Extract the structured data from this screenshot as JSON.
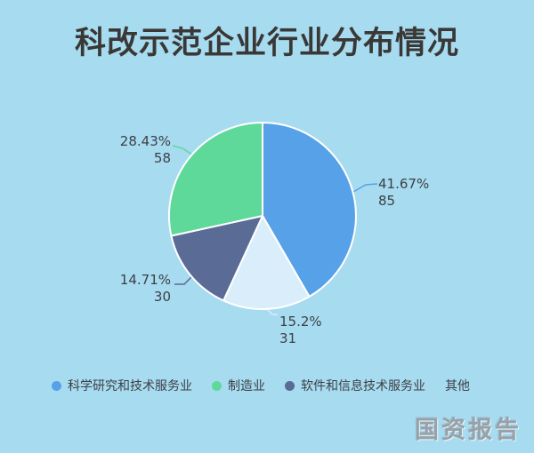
{
  "page": {
    "watermark": "国资报告"
  },
  "colors": {
    "background": "#a7dbf0",
    "title": "#3a3836",
    "label": "#3d4045",
    "slice_border": "#ffffff",
    "watermark": "#99a1a8"
  },
  "chart_data": {
    "type": "pie",
    "title": "科改示范企业行业分布情况",
    "direction": "clockwise",
    "start_angle_deg": 0,
    "legend_position": "bottom",
    "slices": [
      {
        "label": "科学研究和技术服务业",
        "value": 85,
        "percent": "41.67%",
        "count": "85",
        "color": "#57a1e9"
      },
      {
        "label": "其他",
        "value": 31,
        "percent": "15.2%",
        "count": "31",
        "color": "#d9eefa"
      },
      {
        "label": "软件和信息技术服务业",
        "value": 30,
        "percent": "14.71%",
        "count": "30",
        "color": "#5a6b96"
      },
      {
        "label": "制造业",
        "value": 58,
        "percent": "28.43%",
        "count": "58",
        "color": "#5fd999"
      }
    ],
    "legend_order": [
      0,
      3,
      2,
      1
    ]
  }
}
